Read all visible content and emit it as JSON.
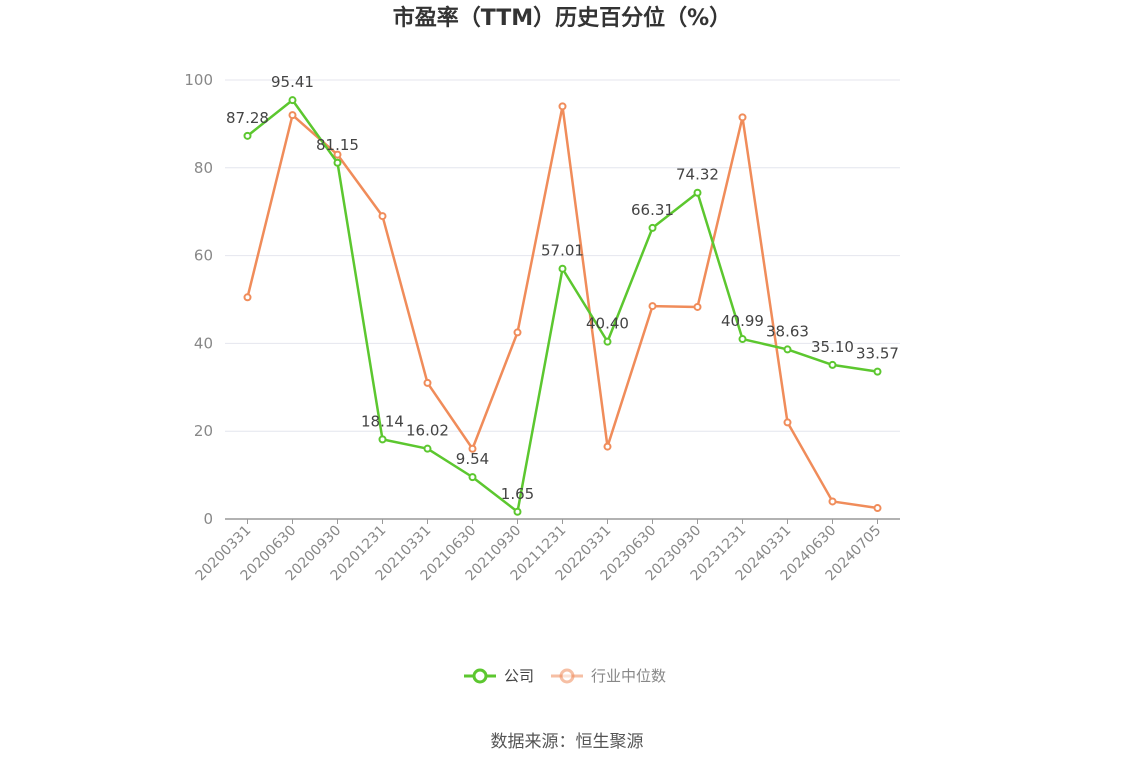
{
  "chart_data": {
    "type": "line",
    "title": "市盈率（TTM）历史百分位（%）",
    "source": "数据来源：恒生聚源",
    "categories": [
      "20200331",
      "20200630",
      "20200930",
      "20201231",
      "20210331",
      "20210630",
      "20210930",
      "20211231",
      "20220331",
      "20230630",
      "20230930",
      "20231231",
      "20240331",
      "20240630",
      "20240705"
    ],
    "ylim": [
      0,
      100
    ],
    "yticks": [
      0,
      20,
      40,
      60,
      80,
      100
    ],
    "grid": true,
    "legend_position": "bottom",
    "series": [
      {
        "name": "公司",
        "color": "#5cc72f",
        "values": [
          87.28,
          95.41,
          81.15,
          18.14,
          16.02,
          9.54,
          1.65,
          57.01,
          40.4,
          66.31,
          74.32,
          40.99,
          38.63,
          35.1,
          33.57
        ],
        "labels": [
          "87.28",
          "95.41",
          "81.15",
          "18.14",
          "16.02",
          "9.54",
          "1.65",
          "57.01",
          "40.40",
          "66.31",
          "74.32",
          "40.99",
          "38.63",
          "35.10",
          "33.57"
        ]
      },
      {
        "name": "行业中位数",
        "color": "#f08c5a",
        "values": [
          50.5,
          92,
          83,
          69,
          31,
          16,
          42.5,
          94,
          16.5,
          48.5,
          48.3,
          91.5,
          22,
          4,
          2.5
        ]
      }
    ]
  }
}
